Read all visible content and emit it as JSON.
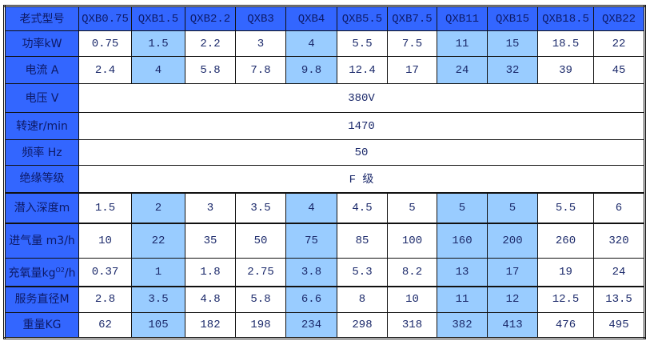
{
  "accent_colors": {
    "header": "#3366ff",
    "highlight": "#99ccff"
  },
  "highlighted_models": [
    "QXB1.5",
    "QXB4",
    "QXB11",
    "QXB15"
  ],
  "header": {
    "label": "老式型号",
    "models": [
      "QXB0.75",
      "QXB1.5",
      "QXB2.2",
      "QXB3",
      "QXB4",
      "QXB5.5",
      "QXB7.5",
      "QXB11",
      "QXB15",
      "QXB18.5",
      "QXB22"
    ]
  },
  "rows": [
    {
      "label": "功率kW",
      "values": [
        "0.75",
        "1.5",
        "2.2",
        "3",
        "4",
        "5.5",
        "7.5",
        "11",
        "15",
        "18.5",
        "22"
      ]
    },
    {
      "label": "电流 A",
      "values": [
        "2.4",
        "4",
        "5.8",
        "7.8",
        "9.8",
        "12.4",
        "17",
        "24",
        "32",
        "39",
        "45"
      ]
    },
    {
      "label": "电压 V",
      "span": "380V"
    },
    {
      "label": "转速r/min",
      "span": "1470"
    },
    {
      "label": "频率 Hz",
      "span": "50"
    },
    {
      "label": "绝缘等级",
      "span": "F 级"
    },
    {
      "label": "潜入深度m",
      "values": [
        "1.5",
        "2",
        "3",
        "3.5",
        "4",
        "4.5",
        "5",
        "5",
        "5",
        "5.5",
        "6"
      ]
    },
    {
      "label": "进气量 m3/h",
      "values": [
        "10",
        "22",
        "35",
        "50",
        "75",
        "85",
        "100",
        "160",
        "200",
        "260",
        "320"
      ]
    },
    {
      "label": "充氧量kgO2/h",
      "values": [
        "0.37",
        "1",
        "1.8",
        "2.75",
        "3.8",
        "5.3",
        "8.2",
        "13",
        "17",
        "19",
        "24"
      ]
    },
    {
      "label": "服务直径M",
      "values": [
        "2.8",
        "3.5",
        "4.8",
        "5.8",
        "6.6",
        "8",
        "10",
        "11",
        "12",
        "12.5",
        "13.5"
      ]
    },
    {
      "label": "重量KG",
      "values": [
        "62",
        "105",
        "182",
        "198",
        "234",
        "298",
        "318",
        "382",
        "413",
        "476",
        "495"
      ]
    }
  ]
}
